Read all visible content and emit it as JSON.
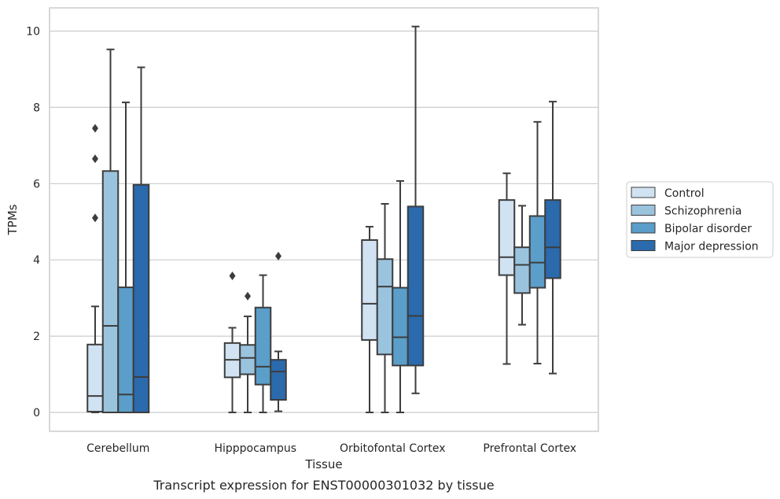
{
  "chart_data": {
    "type": "boxplot",
    "caption": "Transcript expression for ENST00000301032 by tissue",
    "xlabel": "Tissue",
    "ylabel": "TPMs",
    "ylim": [
      -0.5,
      10.6
    ],
    "yticks": [
      0,
      2,
      4,
      6,
      8,
      10
    ],
    "grid": "horizontal",
    "legend_position": "right",
    "categories": [
      "Cerebellum",
      "Hipppocampus",
      "Orbitofontal Cortex",
      "Prefrontal Cortex"
    ],
    "series": [
      {
        "name": "Control",
        "color": "#d1e2f2",
        "boxes": [
          {
            "whisker_low": 0.0,
            "q1": 0.02,
            "median": 0.43,
            "q3": 1.78,
            "whisker_high": 2.78,
            "outliers": [
              5.1,
              6.65,
              7.45
            ]
          },
          {
            "whisker_low": 0.0,
            "q1": 0.92,
            "median": 1.38,
            "q3": 1.82,
            "whisker_high": 2.22,
            "outliers": [
              3.58
            ]
          },
          {
            "whisker_low": 0.0,
            "q1": 1.9,
            "median": 2.85,
            "q3": 4.52,
            "whisker_high": 4.87,
            "outliers": []
          },
          {
            "whisker_low": 1.27,
            "q1": 3.6,
            "median": 4.07,
            "q3": 5.57,
            "whisker_high": 6.27,
            "outliers": []
          }
        ]
      },
      {
        "name": "Schizophrenia",
        "color": "#9ac3de",
        "boxes": [
          {
            "whisker_low": 0.0,
            "q1": 0.0,
            "median": 2.27,
            "q3": 6.33,
            "whisker_high": 9.52,
            "outliers": []
          },
          {
            "whisker_low": 0.0,
            "q1": 1.0,
            "median": 1.43,
            "q3": 1.77,
            "whisker_high": 2.52,
            "outliers": [
              3.05
            ]
          },
          {
            "whisker_low": 0.0,
            "q1": 1.52,
            "median": 3.3,
            "q3": 4.02,
            "whisker_high": 5.47,
            "outliers": []
          },
          {
            "whisker_low": 2.3,
            "q1": 3.13,
            "median": 3.87,
            "q3": 4.33,
            "whisker_high": 5.42,
            "outliers": []
          }
        ]
      },
      {
        "name": "Bipolar disorder",
        "color": "#5a9ec9",
        "boxes": [
          {
            "whisker_low": 0.0,
            "q1": 0.0,
            "median": 0.47,
            "q3": 3.28,
            "whisker_high": 8.13,
            "outliers": []
          },
          {
            "whisker_low": 0.0,
            "q1": 0.73,
            "median": 1.2,
            "q3": 2.75,
            "whisker_high": 3.6,
            "outliers": []
          },
          {
            "whisker_low": 0.0,
            "q1": 1.23,
            "median": 1.97,
            "q3": 3.27,
            "whisker_high": 6.07,
            "outliers": []
          },
          {
            "whisker_low": 1.28,
            "q1": 3.27,
            "median": 3.93,
            "q3": 5.15,
            "whisker_high": 7.62,
            "outliers": []
          }
        ]
      },
      {
        "name": "Major depression",
        "color": "#2a6aad",
        "boxes": [
          {
            "whisker_low": 0.0,
            "q1": 0.0,
            "median": 0.93,
            "q3": 5.97,
            "whisker_high": 9.05,
            "outliers": []
          },
          {
            "whisker_low": 0.03,
            "q1": 0.33,
            "median": 1.07,
            "q3": 1.38,
            "whisker_high": 1.6,
            "outliers": [
              4.1
            ]
          },
          {
            "whisker_low": 0.5,
            "q1": 1.23,
            "median": 2.53,
            "q3": 5.4,
            "whisker_high": 10.12,
            "outliers": []
          },
          {
            "whisker_low": 1.02,
            "q1": 3.52,
            "median": 4.33,
            "q3": 5.57,
            "whisker_high": 8.15,
            "outliers": []
          }
        ]
      }
    ]
  }
}
